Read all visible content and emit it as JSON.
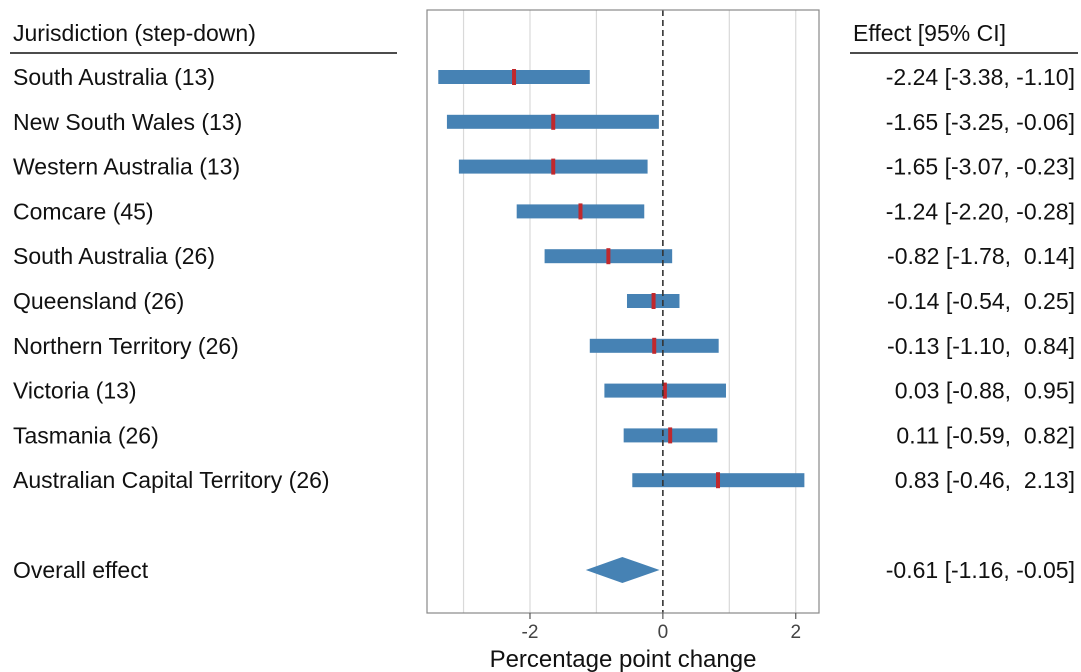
{
  "chart_data": {
    "type": "forest",
    "left_header": "Jurisdiction (step-down)",
    "right_header": "Effect [95% CI]",
    "xlabel": "Percentage point change",
    "xlim": [
      -3.55,
      2.35
    ],
    "xticks": [
      -2,
      0,
      2
    ],
    "xtick_labels": [
      "-2",
      "0",
      "2"
    ],
    "minor_gridlines": [
      -3,
      -1,
      1
    ],
    "reference_line": 0,
    "grid": true,
    "colors": {
      "interval": "#4682b4",
      "point": "#c0282d",
      "grid": "#d9d9d9",
      "reference": "#333333"
    },
    "rows": [
      {
        "label": "South Australia (13)",
        "effect": -2.24,
        "lower": -3.38,
        "upper": -1.1,
        "text": "-2.24 [-3.38, -1.10]"
      },
      {
        "label": "New South Wales (13)",
        "effect": -1.65,
        "lower": -3.25,
        "upper": -0.06,
        "text": "-1.65 [-3.25, -0.06]"
      },
      {
        "label": "Western Australia (13)",
        "effect": -1.65,
        "lower": -3.07,
        "upper": -0.23,
        "text": "-1.65 [-3.07, -0.23]"
      },
      {
        "label": "Comcare (45)",
        "effect": -1.24,
        "lower": -2.2,
        "upper": -0.28,
        "text": "-1.24 [-2.20, -0.28]"
      },
      {
        "label": "South Australia (26)",
        "effect": -0.82,
        "lower": -1.78,
        "upper": 0.14,
        "text": "-0.82 [-1.78,  0.14]"
      },
      {
        "label": "Queensland (26)",
        "effect": -0.14,
        "lower": -0.54,
        "upper": 0.25,
        "text": "-0.14 [-0.54,  0.25]"
      },
      {
        "label": "Northern Territory (26)",
        "effect": -0.13,
        "lower": -1.1,
        "upper": 0.84,
        "text": "-0.13 [-1.10,  0.84]"
      },
      {
        "label": "Victoria (13)",
        "effect": 0.03,
        "lower": -0.88,
        "upper": 0.95,
        "text": " 0.03 [-0.88,  0.95]"
      },
      {
        "label": "Tasmania (26)",
        "effect": 0.11,
        "lower": -0.59,
        "upper": 0.82,
        "text": " 0.11 [-0.59,  0.82]"
      },
      {
        "label": "Australian Capital Territory (26)",
        "effect": 0.83,
        "lower": -0.46,
        "upper": 2.13,
        "text": " 0.83 [-0.46,  2.13]"
      }
    ],
    "overall": {
      "label": "Overall effect",
      "effect": -0.61,
      "lower": -1.16,
      "upper": -0.05,
      "text": "-0.61 [-1.16, -0.05]"
    }
  }
}
